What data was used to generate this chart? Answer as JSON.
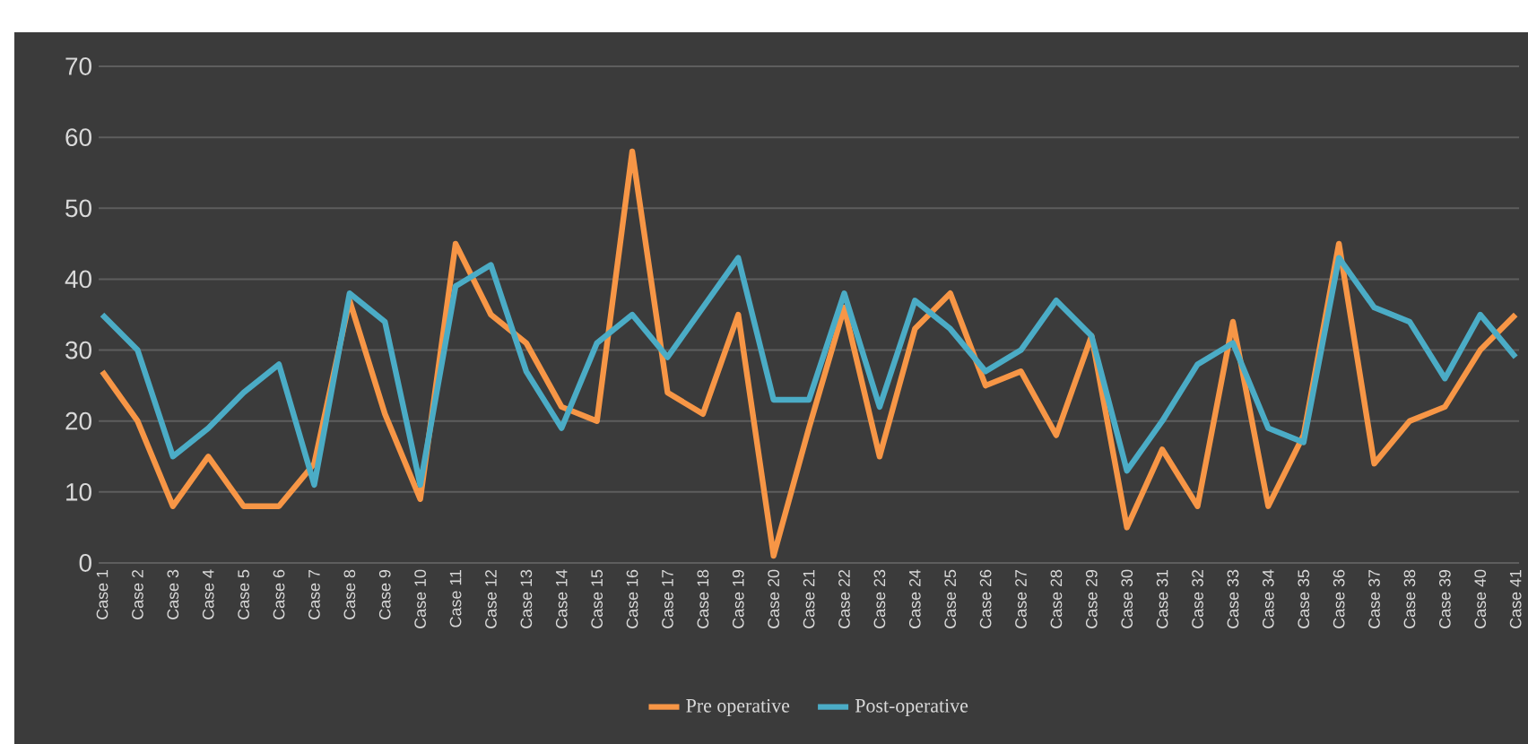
{
  "chart_data": {
    "type": "line",
    "categories": [
      "Case 1",
      "Case 2",
      "Case 3",
      "Case 4",
      "Case 5",
      "Case 6",
      "Case 7",
      "Case 8",
      "Case 9",
      "Case 10",
      "Case 11",
      "Case 12",
      "Case 13",
      "Case 14",
      "Case 15",
      "Case 16",
      "Case 17",
      "Case 18",
      "Case 19",
      "Case 20",
      "Case 21",
      "Case 22",
      "Case 23",
      "Case 24",
      "Case 25",
      "Case 26",
      "Case 27",
      "Case 28",
      "Case 29",
      "Case 30",
      "Case 31",
      "Case 32",
      "Case 33",
      "Case 34",
      "Case 35",
      "Case 36",
      "Case 37",
      "Case 38",
      "Case 39",
      "Case 40",
      "Case 41"
    ],
    "series": [
      {
        "name": "Pre operative",
        "color": "#f79646",
        "values": [
          27,
          20,
          8,
          15,
          8,
          8,
          14,
          37,
          21,
          9,
          45,
          35,
          31,
          22,
          20,
          58,
          24,
          21,
          35,
          1,
          19,
          36,
          15,
          33,
          38,
          25,
          27,
          18,
          32,
          5,
          16,
          8,
          34,
          8,
          18,
          45,
          14,
          20,
          22,
          30,
          35
        ]
      },
      {
        "name": "Post-operative",
        "color": "#4bacc6",
        "values": [
          35,
          30,
          15,
          19,
          24,
          28,
          11,
          38,
          34,
          11,
          39,
          42,
          27,
          19,
          31,
          35,
          29,
          36,
          43,
          23,
          23,
          38,
          22,
          37,
          33,
          27,
          30,
          37,
          32,
          13,
          20,
          28,
          31,
          19,
          17,
          43,
          36,
          34,
          26,
          35,
          29
        ]
      }
    ],
    "ylim": [
      0,
      70
    ],
    "yticks": [
      0,
      10,
      20,
      30,
      40,
      50,
      60,
      70
    ],
    "grid": true,
    "legend": "bottom"
  }
}
